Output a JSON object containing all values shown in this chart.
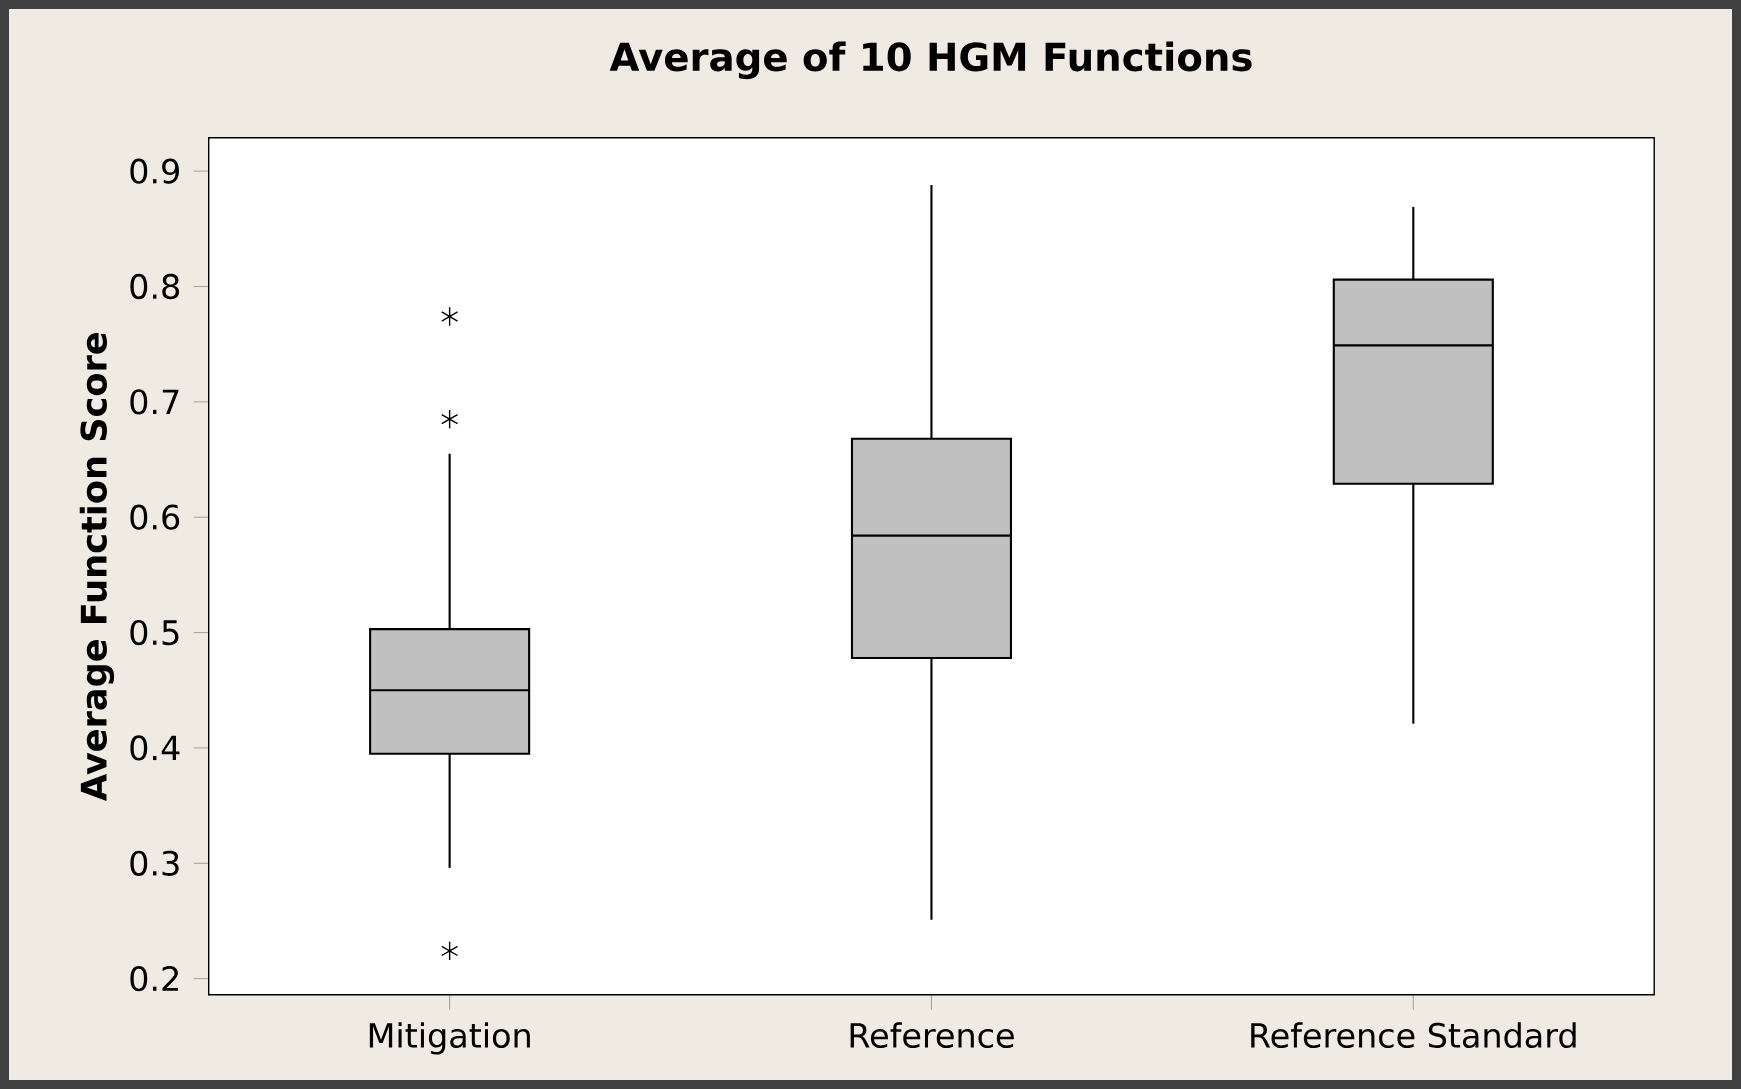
{
  "chart_data": {
    "type": "box",
    "title": "Average of 10 HGM Functions",
    "ylabel": "Average Function Score",
    "categories": [
      "Mitigation",
      "Reference",
      "Reference Standard"
    ],
    "boxes": [
      {
        "low": 0.296,
        "q1": 0.395,
        "median": 0.45,
        "q3": 0.503,
        "high": 0.655,
        "outliers": [
          0.774,
          0.685,
          0.224
        ]
      },
      {
        "low": 0.251,
        "q1": 0.478,
        "median": 0.584,
        "q3": 0.668,
        "high": 0.888
      },
      {
        "low": 0.421,
        "q1": 0.629,
        "median": 0.749,
        "q3": 0.806,
        "high": 0.869
      }
    ],
    "color": "#c0c0c0",
    "ylim": [
      0.186,
      0.929
    ],
    "yticks": [
      0.2,
      0.3,
      0.4,
      0.5,
      0.6,
      0.7,
      0.8,
      0.9
    ]
  }
}
